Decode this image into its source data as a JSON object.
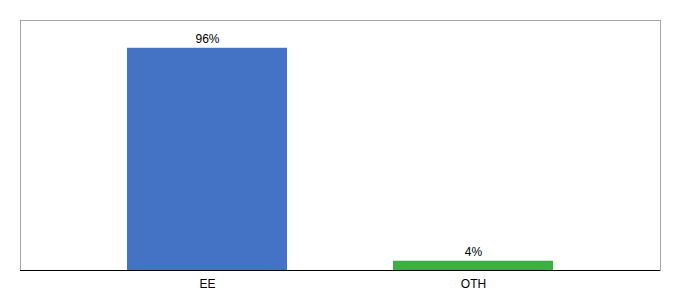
{
  "chart_data": {
    "type": "bar",
    "categories": [
      "EE",
      "OTH"
    ],
    "values": [
      96,
      4
    ],
    "value_labels": [
      "96%",
      "4%"
    ],
    "colors": [
      "#4472C4",
      "#3CB043"
    ],
    "ylim": [
      0,
      108
    ],
    "data_labels": true,
    "tick_labels": "x",
    "grid": false
  }
}
